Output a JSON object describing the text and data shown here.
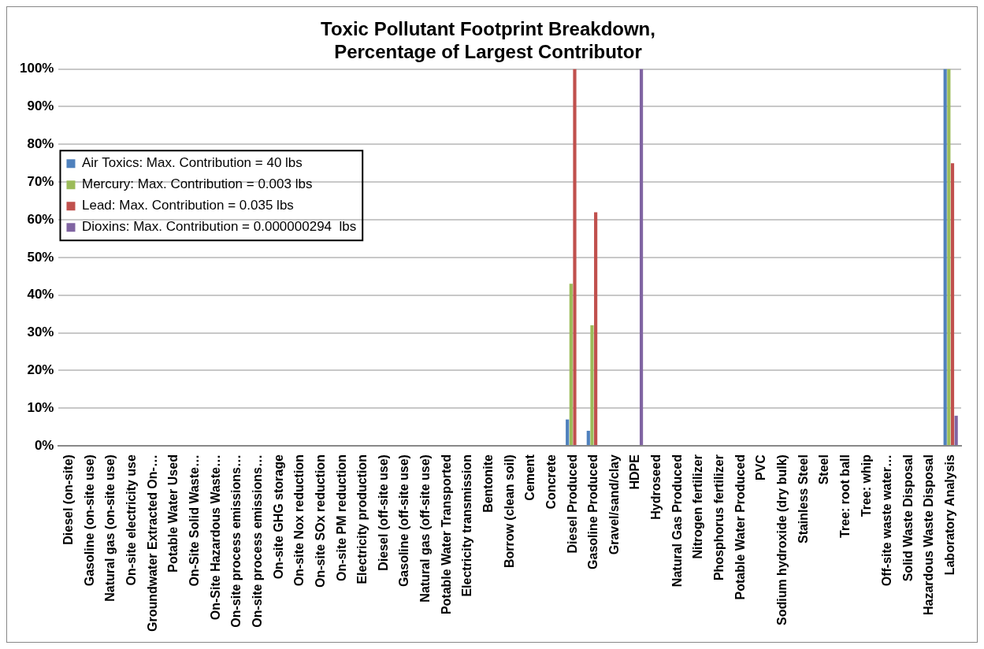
{
  "chart_data": {
    "type": "bar",
    "title": [
      "Toxic Pollutant Footprint Breakdown,",
      "Percentage of Largest Contributor"
    ],
    "categories": [
      "Diesel (on-site)",
      "Gasoline (on-site use)",
      "Natural gas (on-site use)",
      "On-site electricity use",
      "Groundwater Extracted On-…",
      "Potable Water Used",
      "On-Site Solid Waste…",
      "On-Site Hazardous Waste…",
      "On-site process emissions…",
      "On-site process emissions…",
      "On-site GHG storage",
      "On-site Nox reduction",
      "On-site SOx reduction",
      "On-site PM reduction",
      "Electricity production",
      "Diesel (off-site use)",
      "Gasoline (off-site use)",
      "Natural gas (off-site use)",
      "Potable Water Transported",
      "Electricity transmission",
      "Bentonite",
      "Borrow (clean soil)",
      "Cement",
      "Concrete",
      "Diesel Produced",
      "Gasoline Produced",
      "Gravel/sand/clay",
      "HDPE",
      "Hydroseed",
      "Natural Gas Produced",
      "Nitrogen fertilizer",
      "Phosphorus fertilizer",
      "Potable Water Produced",
      "PVC",
      "Sodium hydroxide (dry bulk)",
      "Stainless Steel",
      "Steel",
      "Tree: root ball",
      "Tree: whip",
      "Off-site waste water…",
      "Solid Waste Disposal",
      "Hazardous Waste Disposal",
      "Laboratory Analysis"
    ],
    "series": [
      {
        "name": "Air Toxics: Max. Contribution = 40 lbs",
        "color": "#4f81bd",
        "values": [
          0,
          0,
          0,
          0,
          0,
          0,
          0,
          0,
          0,
          0,
          0,
          0,
          0,
          0,
          0,
          0,
          0,
          0,
          0,
          0,
          0,
          0,
          0,
          0,
          7,
          4,
          0,
          0,
          0,
          0,
          0,
          0,
          0,
          0,
          0,
          0,
          0,
          0,
          0,
          0,
          0,
          0,
          100
        ]
      },
      {
        "name": "Mercury: Max. Contribution = 0.003 lbs",
        "color": "#9bbb59",
        "values": [
          0,
          0,
          0,
          0,
          0,
          0,
          0,
          0,
          0,
          0,
          0,
          0,
          0,
          0,
          0,
          0,
          0,
          0,
          0,
          0,
          0,
          0,
          0,
          0,
          43,
          32,
          0,
          0,
          0,
          0,
          0,
          0,
          0,
          0,
          0,
          0,
          0,
          0,
          0,
          0,
          0,
          0,
          100
        ]
      },
      {
        "name": "Lead: Max. Contribution = 0.035 lbs",
        "color": "#c0504d",
        "values": [
          0,
          0,
          0,
          0,
          0,
          0,
          0,
          0,
          0,
          0,
          0,
          0,
          0,
          0,
          0,
          0,
          0,
          0,
          0,
          0,
          0,
          0,
          0,
          0,
          100,
          62,
          0,
          0,
          0,
          0,
          0,
          0,
          0,
          0,
          0,
          0,
          0,
          0,
          0,
          0,
          0,
          0,
          75
        ]
      },
      {
        "name": "Dioxins: Max. Contribution = 0.000000294  lbs",
        "color": "#8064a2",
        "values": [
          0,
          0,
          0,
          0,
          0,
          0,
          0,
          0,
          0,
          0,
          0,
          0,
          0,
          0,
          0,
          0,
          0,
          0,
          0,
          0,
          0,
          0,
          0,
          0,
          0,
          0,
          0,
          100,
          0,
          0,
          0,
          0,
          0,
          0,
          0,
          0,
          0,
          0,
          0,
          0,
          0,
          0,
          8
        ]
      }
    ],
    "ylim": [
      0,
      100
    ],
    "yticks": [
      {
        "value": 0,
        "label": "0%"
      },
      {
        "value": 10,
        "label": "10%"
      },
      {
        "value": 20,
        "label": "20%"
      },
      {
        "value": 30,
        "label": "30%"
      },
      {
        "value": 40,
        "label": "40%"
      },
      {
        "value": 50,
        "label": "50%"
      },
      {
        "value": 60,
        "label": "60%"
      },
      {
        "value": 70,
        "label": "70%"
      },
      {
        "value": 80,
        "label": "80%"
      },
      {
        "value": 90,
        "label": "90%"
      },
      {
        "value": 100,
        "label": "100%"
      }
    ],
    "grid": "y",
    "legend": "left"
  }
}
